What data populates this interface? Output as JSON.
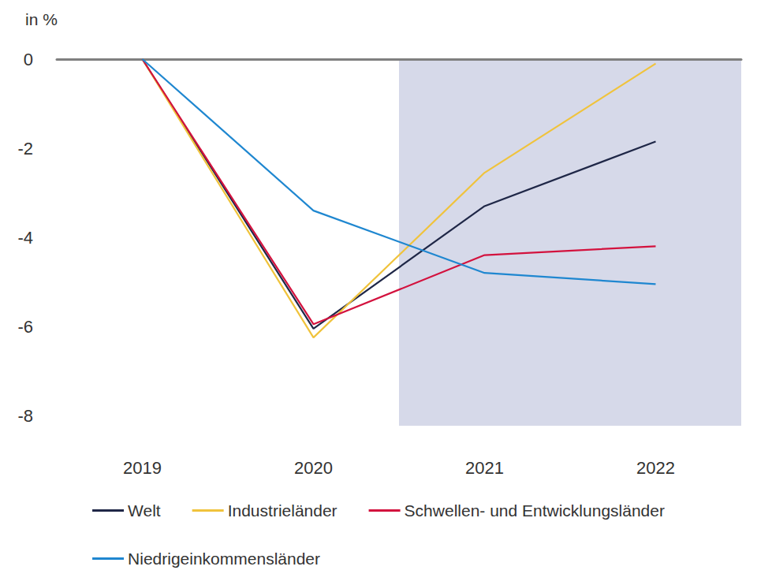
{
  "chart_data": {
    "type": "line",
    "y_label": "in %",
    "categories": [
      "2019",
      "2020",
      "2021",
      "2022"
    ],
    "series": [
      {
        "name": "Welt",
        "color": "#1f2747",
        "values": [
          0,
          -6.05,
          -3.3,
          -1.85
        ]
      },
      {
        "name": "Industrieländer",
        "color": "#f0c33c",
        "values": [
          0,
          -6.25,
          -2.55,
          -0.1
        ]
      },
      {
        "name": "Schwellen- und Entwicklungsländer",
        "color": "#d3123e",
        "values": [
          0,
          -5.95,
          -4.4,
          -4.2
        ]
      },
      {
        "name": "Niedrigeinkommensländer",
        "color": "#1f87d0",
        "values": [
          0,
          -3.4,
          -4.8,
          -5.05
        ]
      }
    ],
    "ylim": [
      -8,
      0
    ],
    "yticks": [
      0,
      -2,
      -4,
      -6,
      -8
    ],
    "grid": false,
    "legend": "bottom"
  }
}
